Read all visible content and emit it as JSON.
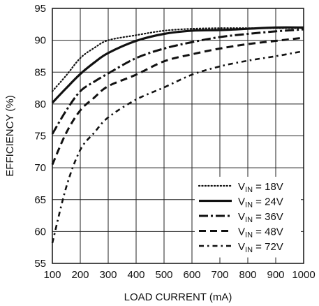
{
  "chart_data": {
    "type": "line",
    "title": "",
    "xlabel": "LOAD CURRENT (mA)",
    "ylabel": "EFFICIENCY (%)",
    "xlim": [
      100,
      1000
    ],
    "ylim": [
      55,
      95
    ],
    "xticks": [
      100,
      200,
      300,
      400,
      500,
      600,
      700,
      800,
      900,
      1000
    ],
    "yticks": [
      55,
      60,
      65,
      70,
      75,
      80,
      85,
      90,
      95
    ],
    "grid": true,
    "legend_position": "bottom-right",
    "legend_prefix": "V",
    "legend_sub": "IN",
    "series": [
      {
        "name": "VIN = 18V",
        "legend_value": " = 18V",
        "style": "dotted",
        "x": [
          100,
          150,
          200,
          250,
          300,
          400,
          500,
          600,
          700,
          800,
          900,
          1000
        ],
        "y": [
          82,
          84.5,
          87.2,
          88.8,
          90,
          90.8,
          91.5,
          91.8,
          91.9,
          91.9,
          91.9,
          91.9
        ]
      },
      {
        "name": "VIN = 24V",
        "legend_value": " = 24V",
        "style": "solid",
        "x": [
          100,
          150,
          200,
          250,
          300,
          400,
          500,
          600,
          700,
          800,
          900,
          1000
        ],
        "y": [
          80.2,
          82.5,
          84.7,
          86.5,
          88,
          89.9,
          91,
          91.5,
          91.6,
          91.8,
          92,
          92
        ]
      },
      {
        "name": "VIN = 36V",
        "legend_value": " = 36V",
        "style": "dashdot",
        "x": [
          100,
          150,
          200,
          250,
          300,
          400,
          500,
          600,
          700,
          800,
          900,
          1000
        ],
        "y": [
          75.3,
          79,
          82,
          83.5,
          84.8,
          87.2,
          88.7,
          89.7,
          90.5,
          91,
          91.4,
          91.7
        ]
      },
      {
        "name": "VIN = 48V",
        "legend_value": " = 48V",
        "style": "dashed",
        "x": [
          100,
          150,
          200,
          250,
          300,
          400,
          500,
          600,
          700,
          800,
          900,
          1000
        ],
        "y": [
          70.5,
          75.5,
          79,
          81,
          82.8,
          84.6,
          86.7,
          87.8,
          88.7,
          89.4,
          89.9,
          90.4
        ]
      },
      {
        "name": "VIN = 72V",
        "legend_value": " = 72V",
        "style": "dashdot-long",
        "x": [
          100,
          150,
          200,
          250,
          300,
          400,
          500,
          600,
          700,
          800,
          900,
          1000
        ],
        "y": [
          58.2,
          67,
          72.8,
          75.5,
          77.9,
          80.7,
          82.6,
          84.6,
          85.9,
          86.8,
          87.5,
          88.3
        ]
      }
    ]
  }
}
